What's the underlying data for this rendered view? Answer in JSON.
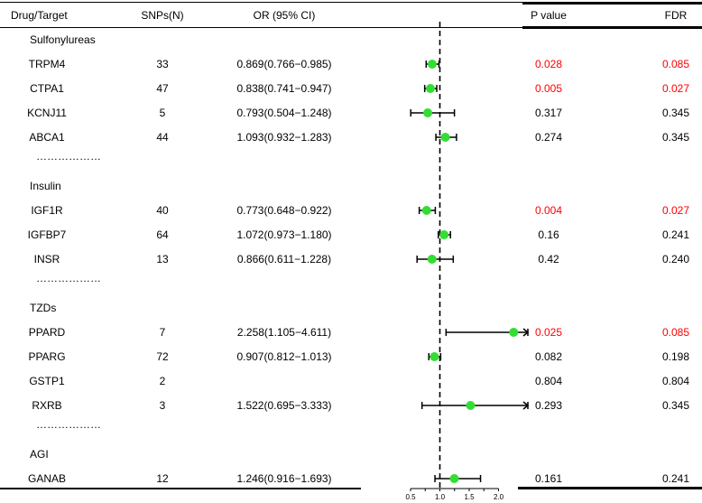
{
  "headers": {
    "drug": "Drug/Target",
    "snps": "SNPs(N)",
    "or": "OR (95% CI)",
    "pvalue": "P value",
    "fdr": "FDR"
  },
  "rows": [
    {
      "kind": "group",
      "label": "Sulfonylureas"
    },
    {
      "kind": "data",
      "target": "TRPM4",
      "snps": "33",
      "or_text": "0.869(0.766−0.985)",
      "pvalue": "0.028",
      "fdr": "0.085",
      "significant": true
    },
    {
      "kind": "data",
      "target": "CTPA1",
      "snps": "47",
      "or_text": "0.838(0.741−0.947)",
      "pvalue": "0.005",
      "fdr": "0.027",
      "significant": true
    },
    {
      "kind": "data",
      "target": "KCNJ11",
      "snps": "5",
      "or_text": "0.793(0.504−1.248)",
      "pvalue": "0.317",
      "fdr": "0.345",
      "significant": false
    },
    {
      "kind": "data",
      "target": "ABCA1",
      "snps": "44",
      "or_text": "1.093(0.932−1.283)",
      "pvalue": "0.274",
      "fdr": "0.345",
      "significant": false
    },
    {
      "kind": "sep",
      "label": "………………"
    },
    {
      "kind": "group",
      "label": "Insulin"
    },
    {
      "kind": "data",
      "target": "IGF1R",
      "snps": "40",
      "or_text": "0.773(0.648−0.922)",
      "pvalue": "0.004",
      "fdr": "0.027",
      "significant": true
    },
    {
      "kind": "data",
      "target": "IGFBP7",
      "snps": "64",
      "or_text": "1.072(0.973−1.180)",
      "pvalue": "0.16",
      "fdr": "0.241",
      "significant": false
    },
    {
      "kind": "data",
      "target": "INSR",
      "snps": "13",
      "or_text": "0.866(0.611−1.228)",
      "pvalue": "0.42",
      "fdr": "0.240",
      "significant": false
    },
    {
      "kind": "sep",
      "label": "………………"
    },
    {
      "kind": "group",
      "label": "TZDs"
    },
    {
      "kind": "data",
      "target": "PPARD",
      "snps": "7",
      "or_text": "2.258(1.105−4.611)",
      "pvalue": "0.025",
      "fdr": "0.085",
      "significant": true
    },
    {
      "kind": "data",
      "target": "PPARG",
      "snps": "72",
      "or_text": "0.907(0.812−1.013)",
      "pvalue": "0.082",
      "fdr": "0.198",
      "significant": false
    },
    {
      "kind": "data",
      "target": "GSTP1",
      "snps": "2",
      "or_text": "",
      "pvalue": "0.804",
      "fdr": "0.804",
      "significant": false
    },
    {
      "kind": "data",
      "target": "RXRB",
      "snps": "3",
      "or_text": "1.522(0.695−3.333)",
      "pvalue": "0.293",
      "fdr": "0.345",
      "significant": false
    },
    {
      "kind": "sep",
      "label": "………………"
    },
    {
      "kind": "group",
      "label": "AGI"
    },
    {
      "kind": "data",
      "target": "GANAB",
      "snps": "12",
      "or_text": "1.246(0.916−1.693)",
      "pvalue": "0.161",
      "fdr": "0.241",
      "significant": false
    }
  ],
  "chart_data": {
    "type": "forest",
    "reference_line": 1.0,
    "xlim": [
      0.5,
      2.5
    ],
    "xticks": [
      0.5,
      0.75,
      1.0,
      1.25,
      1.5,
      1.75,
      2.0
    ],
    "xtick_labels": [
      "0.5",
      "",
      "1.0",
      "",
      "1.5",
      "",
      "2.0"
    ],
    "points": [
      {
        "target": "TRPM4",
        "or": 0.869,
        "lo": 0.766,
        "hi": 0.985,
        "lo_clipped": false,
        "hi_clipped": false
      },
      {
        "target": "CTPA1",
        "or": 0.838,
        "lo": 0.741,
        "hi": 0.947,
        "lo_clipped": false,
        "hi_clipped": false
      },
      {
        "target": "KCNJ11",
        "or": 0.793,
        "lo": 0.504,
        "hi": 1.248,
        "lo_clipped": false,
        "hi_clipped": false
      },
      {
        "target": "ABCA1",
        "or": 1.093,
        "lo": 0.932,
        "hi": 1.283,
        "lo_clipped": false,
        "hi_clipped": false
      },
      {
        "target": "IGF1R",
        "or": 0.773,
        "lo": 0.648,
        "hi": 0.922,
        "lo_clipped": false,
        "hi_clipped": false
      },
      {
        "target": "IGFBP7",
        "or": 1.072,
        "lo": 0.973,
        "hi": 1.18,
        "lo_clipped": false,
        "hi_clipped": false
      },
      {
        "target": "INSR",
        "or": 0.866,
        "lo": 0.611,
        "hi": 1.228,
        "lo_clipped": false,
        "hi_clipped": false
      },
      {
        "target": "PPARD",
        "or": 2.258,
        "lo": 1.105,
        "hi": 4.611,
        "lo_clipped": false,
        "hi_clipped": true
      },
      {
        "target": "PPARG",
        "or": 0.907,
        "lo": 0.812,
        "hi": 1.013,
        "lo_clipped": false,
        "hi_clipped": false
      },
      {
        "target": "RXRB",
        "or": 1.522,
        "lo": 0.695,
        "hi": 3.333,
        "lo_clipped": false,
        "hi_clipped": true
      },
      {
        "target": "GANAB",
        "or": 1.246,
        "lo": 0.916,
        "hi": 1.693,
        "lo_clipped": false,
        "hi_clipped": false
      }
    ]
  },
  "colors": {
    "point": "#33dd33",
    "significant_text": "#ff0000",
    "text": "#000000",
    "reference_line": "#000000"
  }
}
